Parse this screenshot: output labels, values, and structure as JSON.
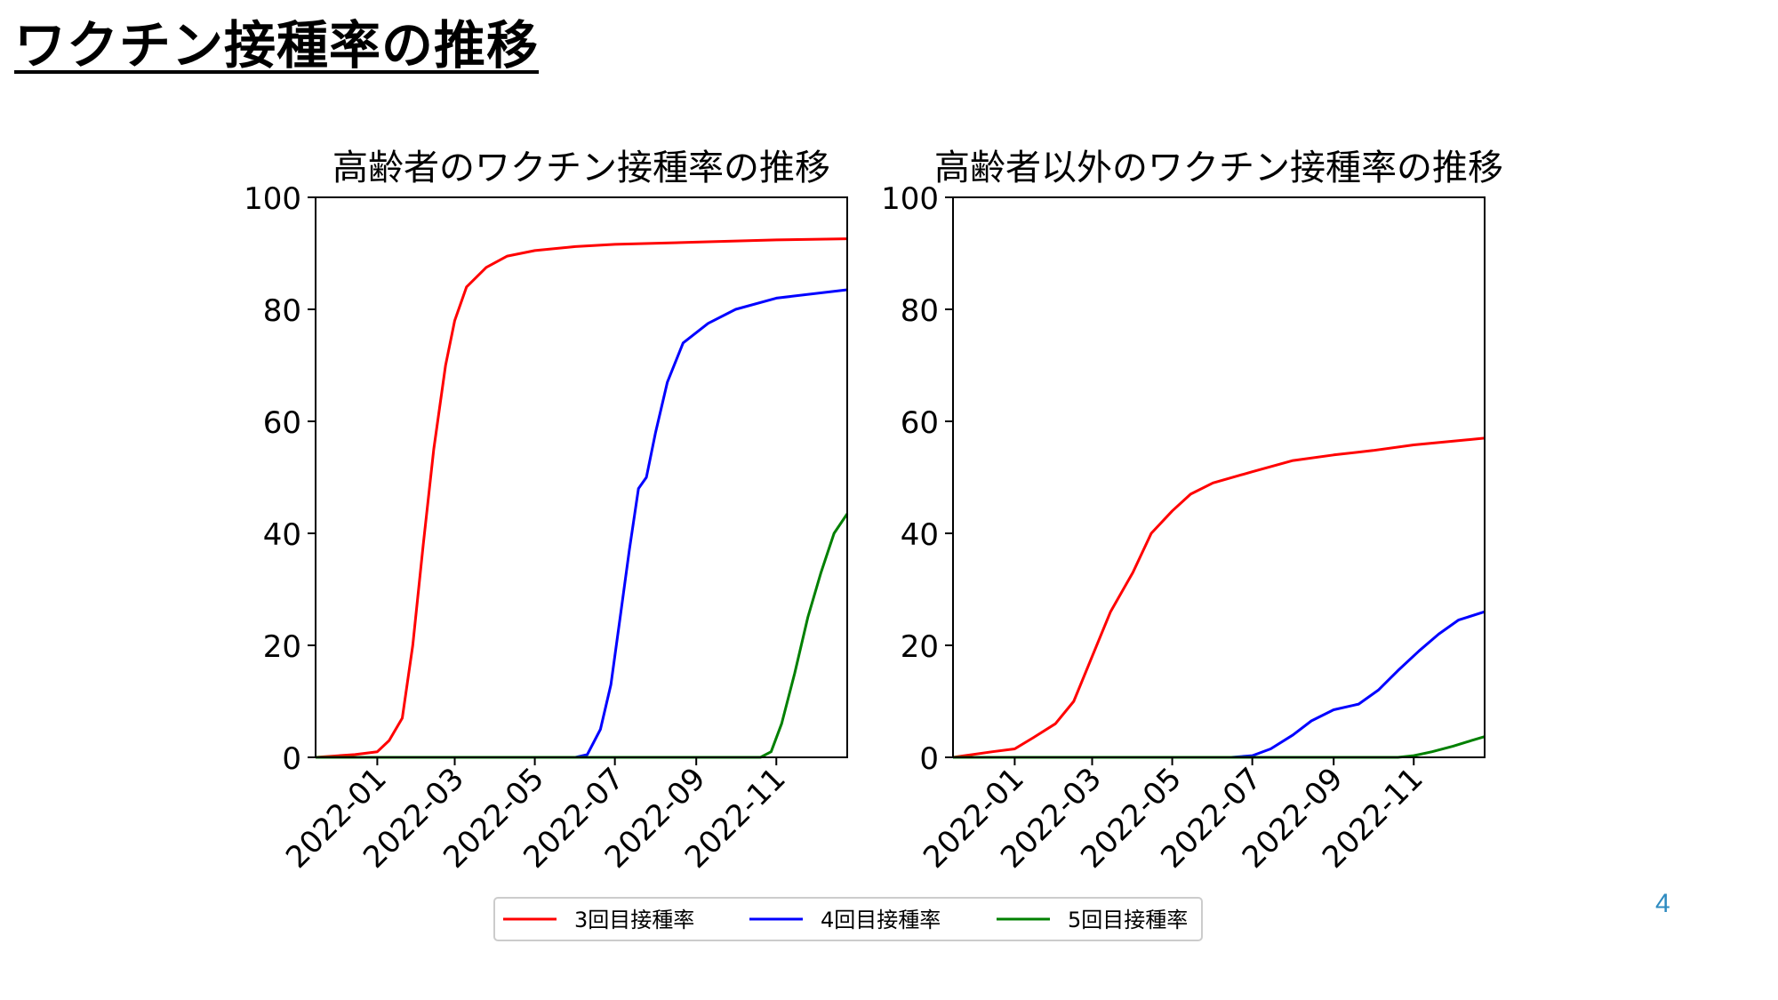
{
  "slide": {
    "title": "ワクチン接種率の推移",
    "page_number": "4"
  },
  "legend": {
    "placement": "bottom-center",
    "entries": [
      {
        "label": "3回目接種率",
        "color": "#ff0000"
      },
      {
        "label": "4回目接種率",
        "color": "#0000ff"
      },
      {
        "label": "5回目接種率",
        "color": "#008000"
      }
    ]
  },
  "chart_data": [
    {
      "type": "line",
      "title": "高齢者のワクチン接種率の推移",
      "xlabel": "",
      "ylabel": "",
      "xlim": [
        "2021-11-15",
        "2022-12-25"
      ],
      "ylim": [
        0,
        100
      ],
      "yticks": [
        0,
        20,
        40,
        60,
        80,
        100
      ],
      "xticks": [
        "2022-01",
        "2022-03",
        "2022-05",
        "2022-07",
        "2022-09",
        "2022-11"
      ],
      "grid": false,
      "series": [
        {
          "name": "3回目接種率",
          "color": "#ff0000",
          "points": [
            [
              "2021-11-15",
              0
            ],
            [
              "2021-12-15",
              0.5
            ],
            [
              "2022-01-01",
              1
            ],
            [
              "2022-01-10",
              3
            ],
            [
              "2022-01-20",
              7
            ],
            [
              "2022-01-28",
              20
            ],
            [
              "2022-02-05",
              38
            ],
            [
              "2022-02-13",
              55
            ],
            [
              "2022-02-22",
              70
            ],
            [
              "2022-03-01",
              78
            ],
            [
              "2022-03-10",
              84
            ],
            [
              "2022-03-25",
              87.5
            ],
            [
              "2022-04-10",
              89.5
            ],
            [
              "2022-05-01",
              90.5
            ],
            [
              "2022-06-01",
              91.2
            ],
            [
              "2022-07-01",
              91.6
            ],
            [
              "2022-09-01",
              92
            ],
            [
              "2022-11-01",
              92.4
            ],
            [
              "2022-12-25",
              92.6
            ]
          ]
        },
        {
          "name": "4回目接種率",
          "color": "#0000ff",
          "points": [
            [
              "2021-11-15",
              0
            ],
            [
              "2022-06-01",
              0
            ],
            [
              "2022-06-10",
              0.5
            ],
            [
              "2022-06-20",
              5
            ],
            [
              "2022-06-28",
              13
            ],
            [
              "2022-07-05",
              25
            ],
            [
              "2022-07-12",
              37
            ],
            [
              "2022-07-19",
              48
            ],
            [
              "2022-07-25",
              50
            ],
            [
              "2022-08-01",
              58
            ],
            [
              "2022-08-10",
              67
            ],
            [
              "2022-08-22",
              74
            ],
            [
              "2022-09-10",
              77.5
            ],
            [
              "2022-10-01",
              80
            ],
            [
              "2022-11-01",
              82
            ],
            [
              "2022-12-25",
              83.5
            ]
          ]
        },
        {
          "name": "5回目接種率",
          "color": "#008000",
          "points": [
            [
              "2021-11-15",
              0
            ],
            [
              "2022-10-20",
              0
            ],
            [
              "2022-10-28",
              1
            ],
            [
              "2022-11-05",
              6
            ],
            [
              "2022-11-15",
              15
            ],
            [
              "2022-11-25",
              25
            ],
            [
              "2022-12-05",
              33
            ],
            [
              "2022-12-15",
              40
            ],
            [
              "2022-12-25",
              43.5
            ]
          ]
        }
      ]
    },
    {
      "type": "line",
      "title": "高齢者以外のワクチン接種率の推移",
      "xlabel": "",
      "ylabel": "",
      "xlim": [
        "2021-11-15",
        "2022-12-25"
      ],
      "ylim": [
        0,
        100
      ],
      "yticks": [
        0,
        20,
        40,
        60,
        80,
        100
      ],
      "xticks": [
        "2022-01",
        "2022-03",
        "2022-05",
        "2022-07",
        "2022-09",
        "2022-11"
      ],
      "grid": false,
      "series": [
        {
          "name": "3回目接種率",
          "color": "#ff0000",
          "points": [
            [
              "2021-11-15",
              0
            ],
            [
              "2021-12-15",
              1
            ],
            [
              "2022-01-01",
              1.5
            ],
            [
              "2022-01-15",
              3.5
            ],
            [
              "2022-02-01",
              6
            ],
            [
              "2022-02-15",
              10
            ],
            [
              "2022-03-01",
              18
            ],
            [
              "2022-03-15",
              26
            ],
            [
              "2022-04-01",
              33
            ],
            [
              "2022-04-15",
              40
            ],
            [
              "2022-05-01",
              44
            ],
            [
              "2022-05-15",
              47
            ],
            [
              "2022-06-01",
              49
            ],
            [
              "2022-07-01",
              51
            ],
            [
              "2022-08-01",
              53
            ],
            [
              "2022-09-01",
              54
            ],
            [
              "2022-10-01",
              54.8
            ],
            [
              "2022-11-01",
              55.8
            ],
            [
              "2022-12-25",
              57
            ]
          ]
        },
        {
          "name": "4回目接種率",
          "color": "#0000ff",
          "points": [
            [
              "2021-11-15",
              0
            ],
            [
              "2022-06-15",
              0
            ],
            [
              "2022-07-01",
              0.3
            ],
            [
              "2022-07-15",
              1.5
            ],
            [
              "2022-08-01",
              4
            ],
            [
              "2022-08-15",
              6.5
            ],
            [
              "2022-09-01",
              8.5
            ],
            [
              "2022-09-20",
              9.5
            ],
            [
              "2022-10-05",
              12
            ],
            [
              "2022-10-20",
              15.5
            ],
            [
              "2022-11-05",
              19
            ],
            [
              "2022-11-20",
              22
            ],
            [
              "2022-12-05",
              24.5
            ],
            [
              "2022-12-25",
              26
            ]
          ]
        },
        {
          "name": "5回目接種率",
          "color": "#008000",
          "points": [
            [
              "2021-11-15",
              0
            ],
            [
              "2022-10-20",
              0
            ],
            [
              "2022-11-01",
              0.3
            ],
            [
              "2022-11-15",
              1
            ],
            [
              "2022-12-01",
              2
            ],
            [
              "2022-12-15",
              3
            ],
            [
              "2022-12-25",
              3.7
            ]
          ]
        }
      ]
    }
  ]
}
